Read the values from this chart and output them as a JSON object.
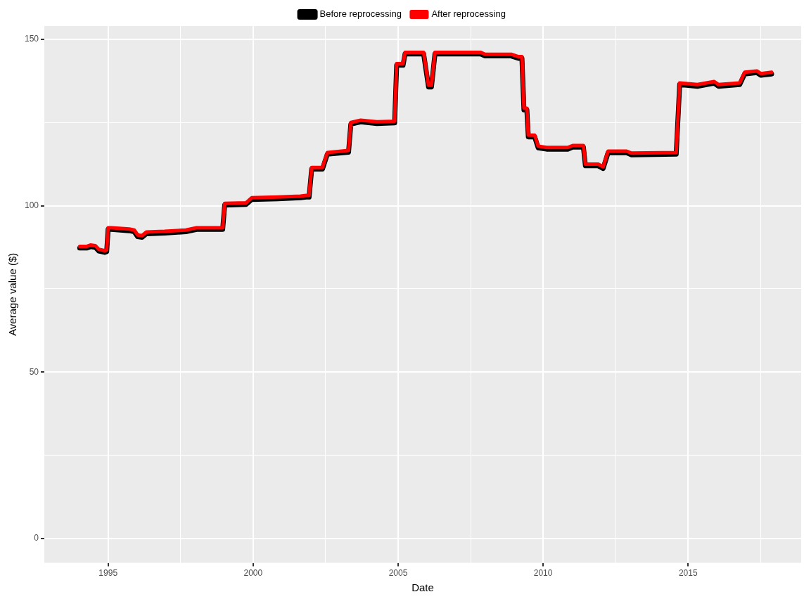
{
  "chart_data": {
    "type": "line",
    "xlabel": "Date",
    "ylabel": "Average value ($)",
    "legend": "top",
    "grid": true,
    "marker": "none",
    "line_style": "solid",
    "xlim": [
      1992.8,
      2018.9
    ],
    "xticks": [
      1995,
      {
        "value": 1997.5,
        "label": null
      },
      2000,
      {
        "value": 2002.5,
        "label": null
      },
      2005,
      {
        "value": 2007.5,
        "label": null
      },
      2010,
      {
        "value": 2012.5,
        "label": null
      },
      2015,
      {
        "value": 2017.5,
        "label": null
      }
    ],
    "ylim": [
      -7.3,
      154
    ],
    "yticks": [
      0,
      {
        "value": 25,
        "label": null
      },
      50,
      {
        "value": 75,
        "label": null
      },
      100,
      {
        "value": 125,
        "label": null
      },
      150
    ],
    "x": [
      1994.02,
      1994.27,
      1994.39,
      1994.56,
      1994.68,
      1994.88,
      1994.95,
      1995.0,
      1995.12,
      1995.73,
      1995.9,
      1996.02,
      1996.17,
      1996.32,
      1996.95,
      1997.68,
      1998.05,
      1998.95,
      1999.02,
      1999.76,
      1999.95,
      2000.85,
      2001.63,
      2001.83,
      2001.93,
      2002.02,
      2002.39,
      2002.56,
      2003.29,
      2003.37,
      2003.71,
      2004.27,
      2004.88,
      2004.95,
      2005.17,
      2005.24,
      2005.73,
      2005.88,
      2006.05,
      2006.15,
      2006.27,
      2007.85,
      2008.0,
      2008.9,
      2009.15,
      2009.27,
      2009.34,
      2009.44,
      2009.49,
      2009.71,
      2009.83,
      2010.12,
      2010.85,
      2011.02,
      2011.39,
      2011.46,
      2011.9,
      2012.07,
      2012.24,
      2012.88,
      2013.05,
      2014.59,
      2014.71,
      2015.32,
      2015.9,
      2016.05,
      2016.78,
      2016.95,
      2017.37,
      2017.51,
      2017.88
    ],
    "series": [
      {
        "name": "Before reprocessing",
        "color": "#000000",
        "values": [
          87.3,
          87.3,
          87.7,
          87.5,
          86.4,
          86.0,
          86.2,
          92.9,
          92.9,
          92.5,
          92.2,
          90.7,
          90.5,
          91.6,
          91.8,
          92.2,
          92.9,
          92.9,
          100.2,
          100.4,
          101.9,
          102.1,
          102.4,
          102.6,
          102.6,
          111.0,
          111.0,
          115.5,
          116.1,
          124.5,
          125.2,
          124.7,
          124.9,
          142.2,
          142.2,
          145.6,
          145.6,
          145.6,
          135.7,
          135.7,
          145.6,
          145.6,
          145.0,
          145.0,
          144.3,
          144.3,
          128.8,
          128.8,
          120.7,
          120.7,
          117.4,
          117.0,
          117.0,
          117.6,
          117.6,
          112.0,
          112.0,
          111.2,
          115.9,
          115.9,
          115.3,
          115.5,
          136.4,
          135.9,
          136.8,
          135.9,
          136.4,
          139.6,
          140.0,
          139.2,
          139.6
        ]
      },
      {
        "name": "After reprocessing",
        "color": "#ff0000",
        "values": [
          87.8,
          87.8,
          88.2,
          88.0,
          86.9,
          86.5,
          86.7,
          93.4,
          93.4,
          93.0,
          92.7,
          91.2,
          91.0,
          92.1,
          92.3,
          92.7,
          93.4,
          93.4,
          100.7,
          100.9,
          102.4,
          102.6,
          102.9,
          103.1,
          103.1,
          111.5,
          111.5,
          116.0,
          116.6,
          125.0,
          125.7,
          125.2,
          125.4,
          142.7,
          142.7,
          146.1,
          146.1,
          146.1,
          136.2,
          136.2,
          146.1,
          146.1,
          145.5,
          145.5,
          144.8,
          144.8,
          129.3,
          129.3,
          121.2,
          121.2,
          117.9,
          117.5,
          117.5,
          118.1,
          118.1,
          112.5,
          112.5,
          111.7,
          116.4,
          116.4,
          115.8,
          116.0,
          136.9,
          136.4,
          137.3,
          136.4,
          136.9,
          140.1,
          140.5,
          139.7,
          140.1
        ]
      }
    ]
  }
}
